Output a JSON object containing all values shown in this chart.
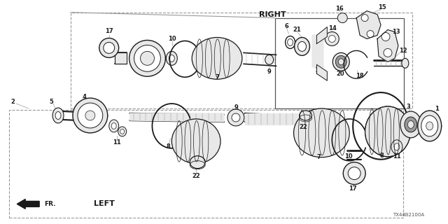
{
  "bg_color": "#ffffff",
  "fig_width": 6.4,
  "fig_height": 3.2,
  "right_label": "RIGHT",
  "left_label": "LEFT",
  "fr_label": "FR.",
  "part_code": "TX44B2100A",
  "black": "#1a1a1a",
  "gray_light": "#cccccc",
  "gray_mid": "#999999",
  "gray_dark": "#555555",
  "gray_fill": "#e8e8e8"
}
